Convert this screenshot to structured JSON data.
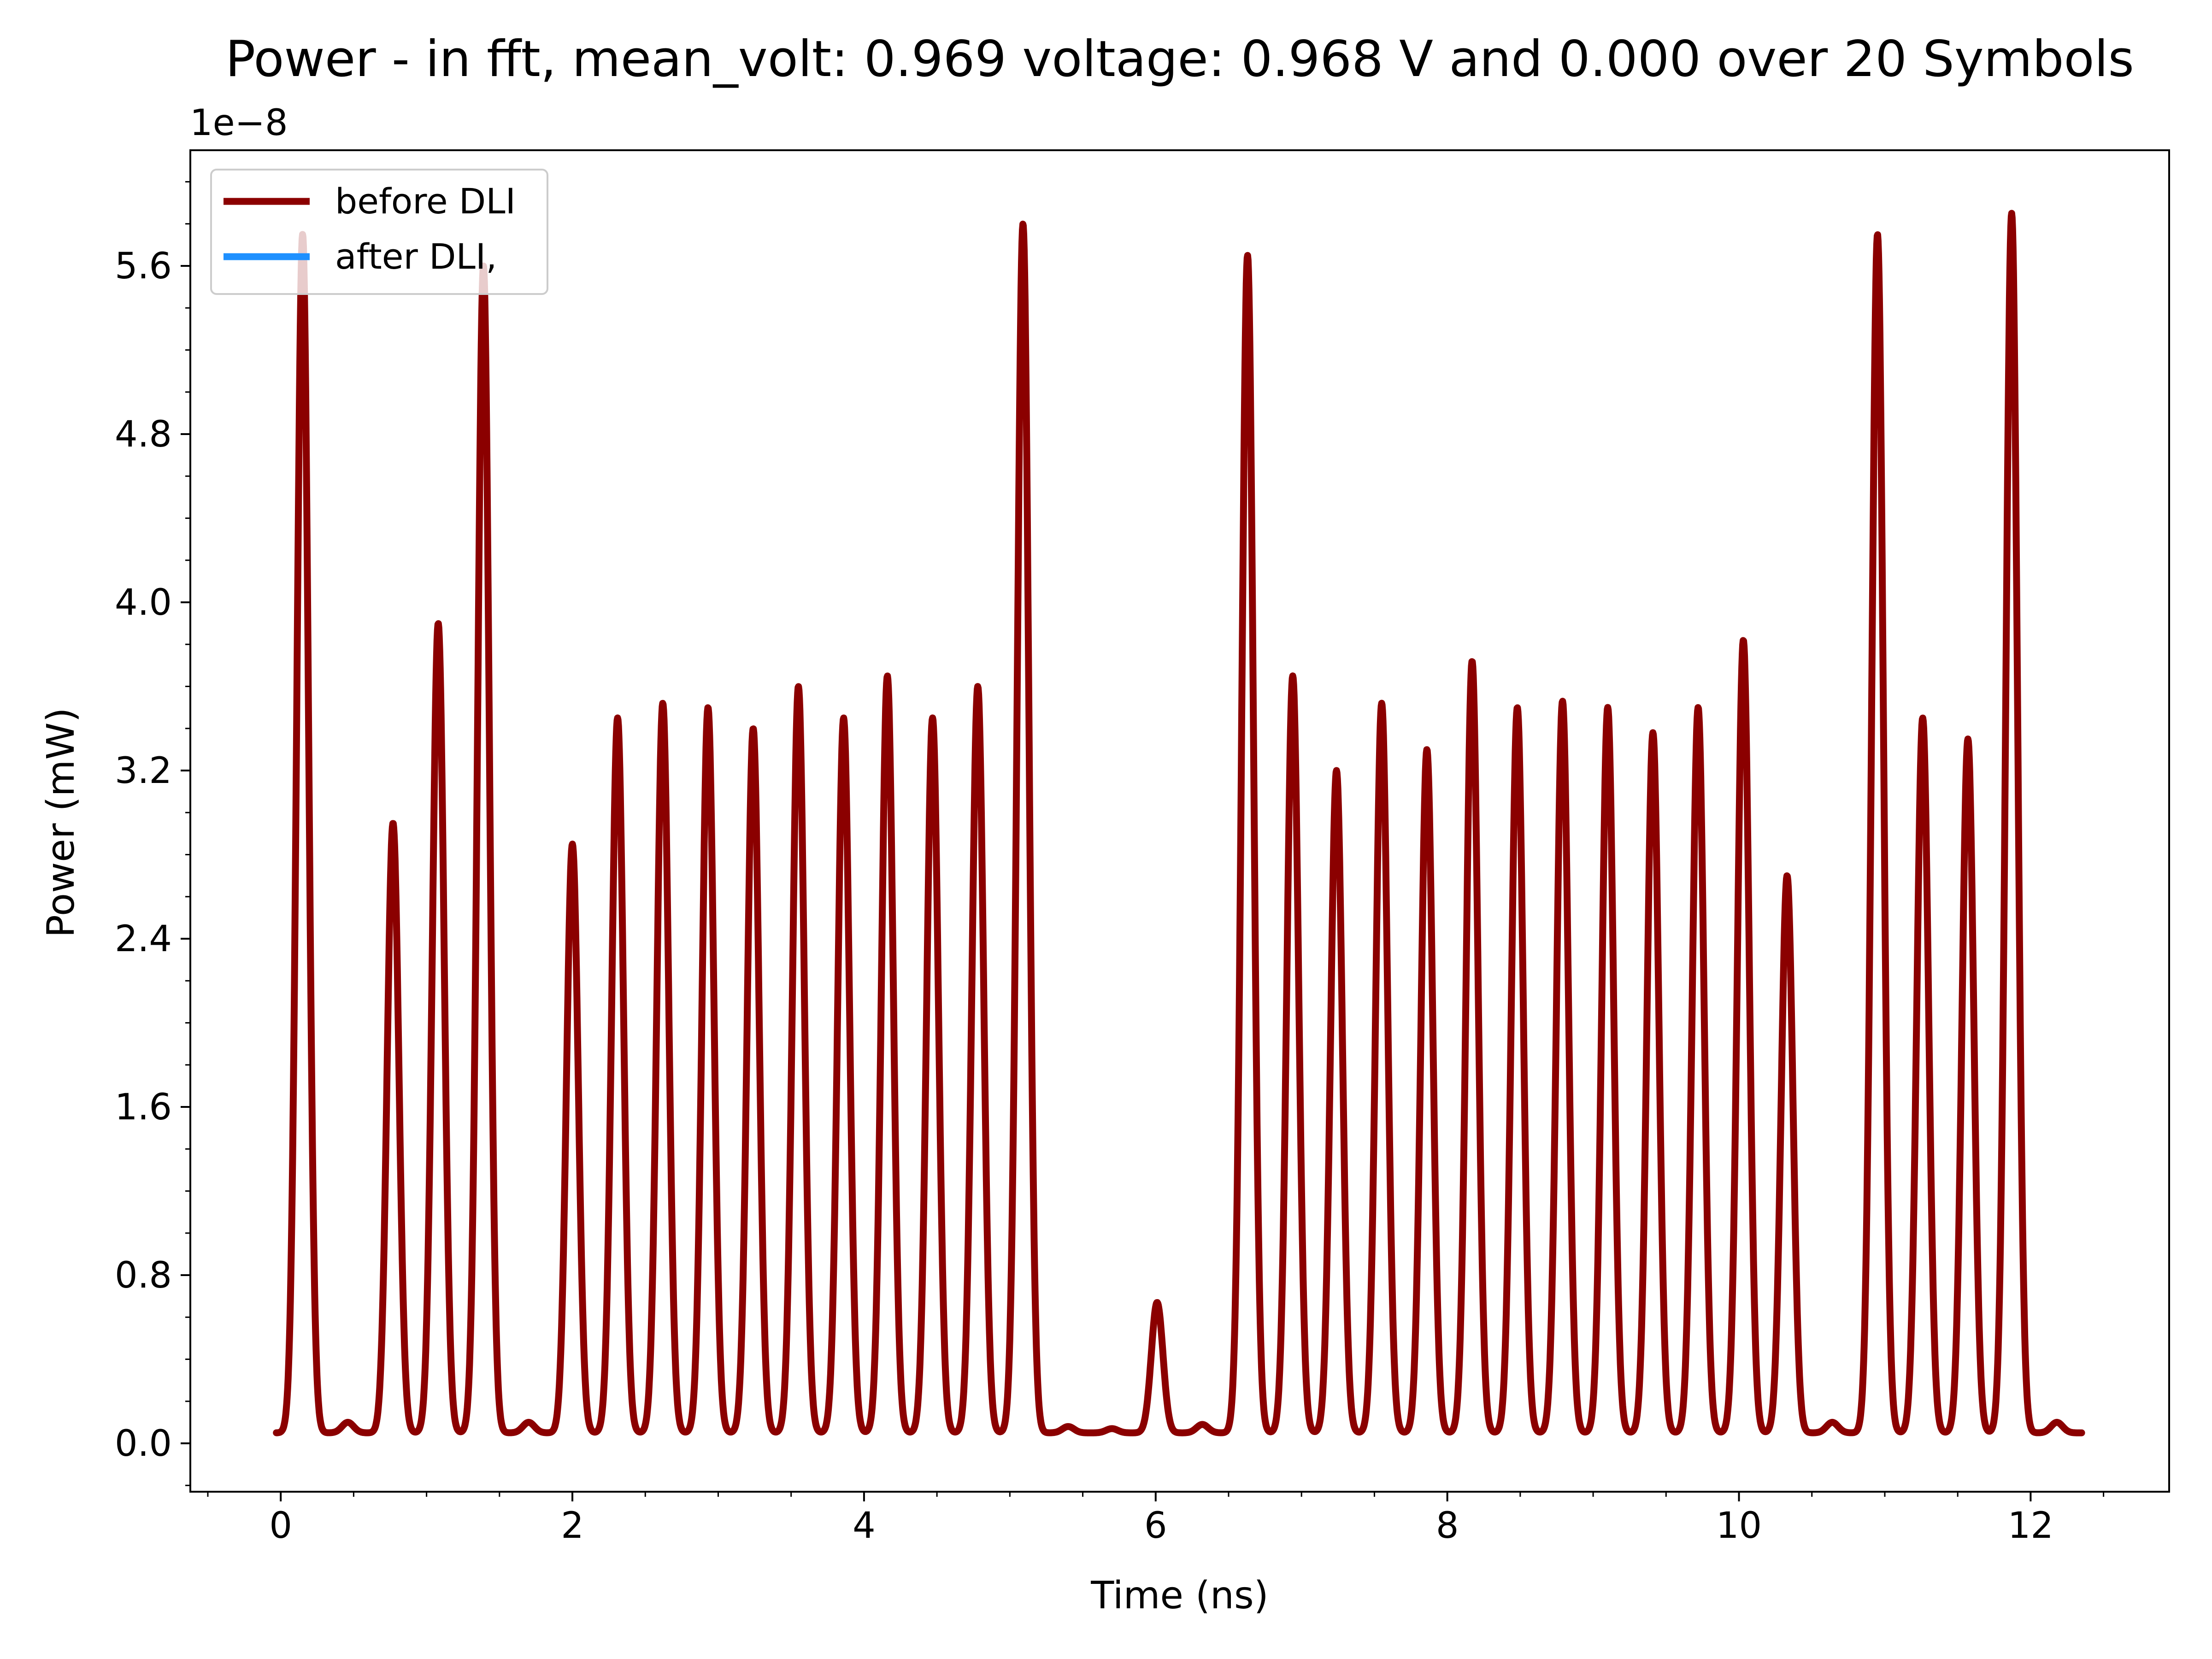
{
  "chart_data": {
    "type": "line",
    "title": "Power - in fft, mean_volt: 0.969 voltage: 0.968 V and 0.000 over 20 Symbols",
    "xlabel": "Time (ns)",
    "ylabel": "Power (mW)",
    "y_offset_text": "1e−8",
    "xlim": [
      -0.62,
      12.95
    ],
    "ylim": [
      -0.23,
      6.15
    ],
    "x_ticks": [
      0,
      2,
      4,
      6,
      8,
      10,
      12
    ],
    "x_tick_labels": [
      "0",
      "2",
      "4",
      "6",
      "8",
      "10",
      "12"
    ],
    "y_ticks": [
      0.0,
      0.8,
      1.6,
      2.4,
      3.2,
      4.0,
      4.8,
      5.6
    ],
    "y_tick_labels": [
      "0.0",
      "0.8",
      "1.6",
      "2.4",
      "3.2",
      "4.0",
      "4.8",
      "5.6"
    ],
    "grid": false,
    "legend_position": "top-left",
    "series": [
      {
        "name": "before DLI",
        "color": "#8b0000",
        "baseline": 0.05,
        "x_range": [
          -0.03,
          12.35
        ],
        "peaks": [
          {
            "x": 0.15,
            "y": 5.75
          },
          {
            "x": 0.46,
            "y": 0.1
          },
          {
            "x": 0.77,
            "y": 2.95
          },
          {
            "x": 1.08,
            "y": 3.9
          },
          {
            "x": 1.39,
            "y": 5.6
          },
          {
            "x": 1.7,
            "y": 0.1
          },
          {
            "x": 2.0,
            "y": 2.85
          },
          {
            "x": 2.31,
            "y": 3.45
          },
          {
            "x": 2.62,
            "y": 3.52
          },
          {
            "x": 2.93,
            "y": 3.5
          },
          {
            "x": 3.24,
            "y": 3.4
          },
          {
            "x": 3.55,
            "y": 3.6
          },
          {
            "x": 3.86,
            "y": 3.45
          },
          {
            "x": 4.16,
            "y": 3.65
          },
          {
            "x": 4.47,
            "y": 3.45
          },
          {
            "x": 4.78,
            "y": 3.6
          },
          {
            "x": 5.09,
            "y": 5.8
          },
          {
            "x": 5.4,
            "y": 0.08
          },
          {
            "x": 5.7,
            "y": 0.07
          },
          {
            "x": 6.01,
            "y": 0.67
          },
          {
            "x": 6.32,
            "y": 0.09
          },
          {
            "x": 6.63,
            "y": 5.65
          },
          {
            "x": 6.94,
            "y": 3.65
          },
          {
            "x": 7.24,
            "y": 3.2
          },
          {
            "x": 7.55,
            "y": 3.52
          },
          {
            "x": 7.86,
            "y": 3.3
          },
          {
            "x": 8.17,
            "y": 3.72
          },
          {
            "x": 8.48,
            "y": 3.5
          },
          {
            "x": 8.79,
            "y": 3.53
          },
          {
            "x": 9.1,
            "y": 3.5
          },
          {
            "x": 9.41,
            "y": 3.38
          },
          {
            "x": 9.72,
            "y": 3.5
          },
          {
            "x": 10.03,
            "y": 3.82
          },
          {
            "x": 10.33,
            "y": 2.7
          },
          {
            "x": 10.64,
            "y": 0.1
          },
          {
            "x": 10.95,
            "y": 5.75
          },
          {
            "x": 11.26,
            "y": 3.45
          },
          {
            "x": 11.57,
            "y": 3.35
          },
          {
            "x": 11.87,
            "y": 5.85
          },
          {
            "x": 12.18,
            "y": 0.1
          }
        ]
      },
      {
        "name": "after DLI,",
        "color": "#1e90ff",
        "values": []
      }
    ]
  }
}
